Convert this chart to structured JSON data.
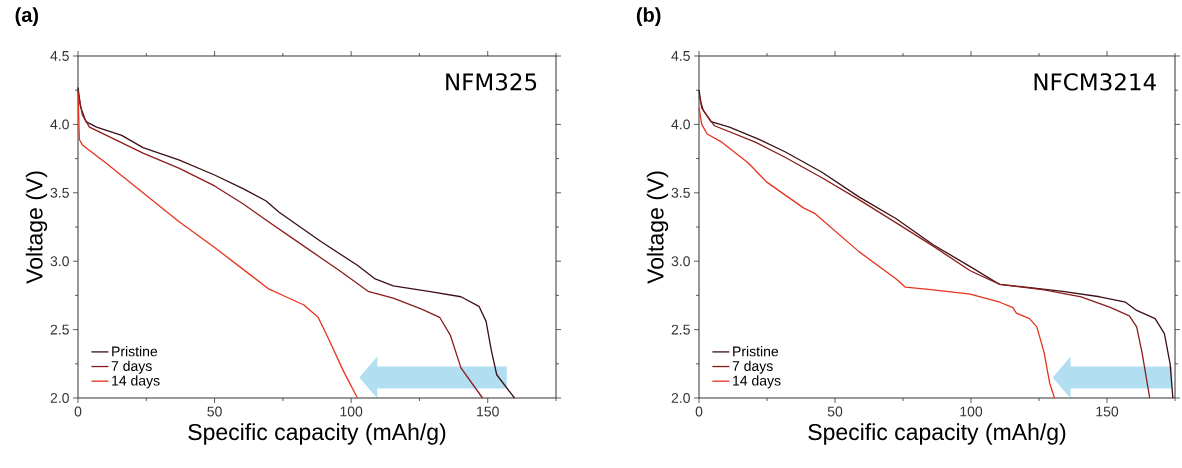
{
  "chart_data": [
    {
      "type": "line",
      "title": "(a)",
      "xlabel": "Specific capacity (mAh/g)",
      "ylabel": "Voltage (V)",
      "annotations": [
        "NFM325"
      ],
      "xlim": [
        0,
        175
      ],
      "ylim": [
        2.0,
        4.5
      ],
      "xticks": [
        0,
        {
          "value": 25,
          "label": null
        },
        50,
        {
          "value": 75,
          "label": null
        },
        100,
        {
          "value": 125,
          "label": null
        },
        150,
        {
          "value": 175,
          "label": null
        }
      ],
      "yticks": [
        {
          "value": 2.0,
          "label": "2.0"
        },
        {
          "value": 2.25,
          "label": null
        },
        {
          "value": 2.5,
          "label": "2.5"
        },
        {
          "value": 2.75,
          "label": null
        },
        {
          "value": 3.0,
          "label": "3.0"
        },
        {
          "value": 3.25,
          "label": null
        },
        {
          "value": 3.5,
          "label": "3.5"
        },
        {
          "value": 3.75,
          "label": null
        },
        {
          "value": 4.0,
          "label": "4.0"
        },
        {
          "value": 4.25,
          "label": null
        },
        {
          "value": 4.5,
          "label": "4.5"
        }
      ],
      "legend": "bottom left",
      "grid": false,
      "series": [
        {
          "name": "Pristine",
          "color": "#3a1015",
          "x": [
            0,
            0.9,
            2.9,
            6.8,
            16,
            23.8,
            36.9,
            50,
            60.4,
            68.9,
            73.5,
            89.2,
            102.3,
            108.8,
            115.4,
            128.4,
            140.2,
            146.8,
            149.4,
            151.3,
            153.3,
            159.8
          ],
          "values": [
            4.27,
            4.13,
            4.02,
            3.98,
            3.92,
            3.83,
            3.74,
            3.63,
            3.53,
            3.44,
            3.36,
            3.14,
            2.97,
            2.87,
            2.82,
            2.78,
            2.74,
            2.67,
            2.56,
            2.35,
            2.17,
            2.0
          ]
        },
        {
          "name": "7 days",
          "color": "#8b1c1c",
          "x": [
            0,
            1.6,
            4.2,
            14.6,
            23.8,
            36.9,
            50,
            60.4,
            69.6,
            82.7,
            95.8,
            106.2,
            115.4,
            125.8,
            132.4,
            136.3,
            140.2,
            148.1
          ],
          "values": [
            4.24,
            4.07,
            3.98,
            3.88,
            3.79,
            3.68,
            3.55,
            3.42,
            3.29,
            3.11,
            2.93,
            2.78,
            2.73,
            2.65,
            2.59,
            2.46,
            2.22,
            2.0
          ]
        },
        {
          "name": "14 days",
          "color": "#e8321e",
          "x": [
            0,
            0.5,
            1.6,
            10.7,
            23.8,
            36.9,
            50,
            63.1,
            69.6,
            76.1,
            82.7,
            87.9,
            91.8,
            97.1,
            102.3
          ],
          "values": [
            4.23,
            3.89,
            3.85,
            3.71,
            3.5,
            3.29,
            3.1,
            2.9,
            2.8,
            2.74,
            2.68,
            2.59,
            2.43,
            2.2,
            2.0
          ]
        }
      ]
    },
    {
      "type": "line",
      "title": "(b)",
      "xlabel": "Specific capacity (mAh/g)",
      "ylabel": "Voltage (V)",
      "annotations": [
        "NFCM3214"
      ],
      "xlim": [
        0,
        175
      ],
      "ylim": [
        2.0,
        4.5
      ],
      "xticks": [
        0,
        {
          "value": 25,
          "label": null
        },
        50,
        {
          "value": 75,
          "label": null
        },
        100,
        {
          "value": 125,
          "label": null
        },
        150,
        {
          "value": 175,
          "label": null
        }
      ],
      "yticks": [
        {
          "value": 2.0,
          "label": "2.0"
        },
        {
          "value": 2.25,
          "label": null
        },
        {
          "value": 2.5,
          "label": "2.5"
        },
        {
          "value": 2.75,
          "label": null
        },
        {
          "value": 3.0,
          "label": "3.0"
        },
        {
          "value": 3.25,
          "label": null
        },
        {
          "value": 3.5,
          "label": "3.5"
        },
        {
          "value": 3.75,
          "label": null
        },
        {
          "value": 4.0,
          "label": "4.0"
        },
        {
          "value": 4.25,
          "label": null
        },
        {
          "value": 4.5,
          "label": "4.5"
        }
      ],
      "legend": "bottom left",
      "grid": false,
      "series": [
        {
          "name": "Pristine",
          "color": "#3a1015",
          "x": [
            0,
            1.0,
            4.4,
            11.2,
            22.1,
            31.6,
            45.2,
            58.8,
            72.5,
            86.1,
            99.7,
            110.6,
            120.1,
            133.7,
            147.3,
            156.8,
            160.9,
            167.7,
            171.1,
            173.2,
            174.2
          ],
          "values": [
            4.25,
            4.12,
            4.02,
            3.98,
            3.89,
            3.8,
            3.65,
            3.47,
            3.31,
            3.12,
            2.96,
            2.83,
            2.81,
            2.78,
            2.74,
            2.7,
            2.64,
            2.58,
            2.47,
            2.25,
            2.0
          ]
        },
        {
          "name": "7 days",
          "color": "#8b1c1c",
          "x": [
            0,
            1.6,
            5.7,
            20.7,
            31.6,
            45.2,
            58.8,
            72.5,
            86.1,
            99.7,
            110.6,
            126.9,
            140.5,
            151.4,
            158.2,
            160.9,
            162.9,
            165.7
          ],
          "values": [
            4.21,
            4.1,
            3.99,
            3.87,
            3.76,
            3.61,
            3.45,
            3.28,
            3.11,
            2.93,
            2.83,
            2.79,
            2.74,
            2.66,
            2.6,
            2.52,
            2.33,
            2.0
          ]
        },
        {
          "name": "14 days",
          "color": "#e8321e",
          "x": [
            0,
            1.0,
            3.0,
            8.4,
            18.0,
            24.8,
            38.4,
            42.5,
            58.8,
            72.5,
            75.9,
            86.1,
            99.7,
            110.6,
            115.4,
            116.7,
            121.5,
            124.2,
            126.9,
            128.9,
            130.7
          ],
          "values": [
            4.12,
            4.0,
            3.93,
            3.87,
            3.72,
            3.58,
            3.39,
            3.35,
            3.07,
            2.87,
            2.81,
            2.79,
            2.76,
            2.7,
            2.66,
            2.62,
            2.58,
            2.52,
            2.33,
            2.11,
            2.0
          ]
        }
      ]
    }
  ]
}
